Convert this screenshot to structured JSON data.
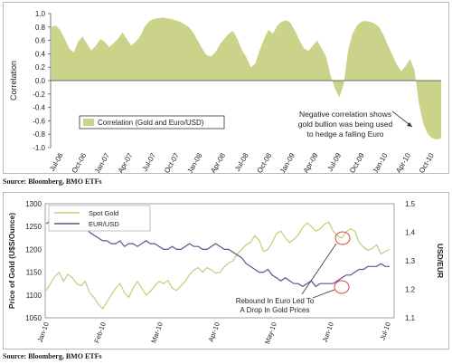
{
  "chart_data": [
    {
      "type": "area",
      "ylabel": "Correlation",
      "ylim": [
        -1.0,
        1.0
      ],
      "yticks": [
        "1.0",
        "0.8",
        "0.6",
        "0.4",
        "0.2",
        "0.0",
        "-0.2",
        "-0.4",
        "-0.6",
        "-0.8",
        "-1.0"
      ],
      "xticks": [
        "Jul-06",
        "Oct-06",
        "Jan-07",
        "Apr-07",
        "Jul-07",
        "Oct-07",
        "Jan-08",
        "Apr-08",
        "Jul-08",
        "Oct-08",
        "Jan-09",
        "Apr-09",
        "Jul-09",
        "Oct-09",
        "Jan-10",
        "Apr-10",
        "Oct-10"
      ],
      "legend": "Correlation (Gold and Euro/USD)",
      "legend_position": "bottom-left",
      "annotation": [
        "Negative correlation shows",
        "gold bullion was being used",
        "to hedge a falling Euro"
      ],
      "color": "#cbd28a",
      "series": [
        {
          "values": [
            0.8,
            0.82,
            0.75,
            0.62,
            0.48,
            0.42,
            0.58,
            0.66,
            0.55,
            0.45,
            0.52,
            0.62,
            0.58,
            0.5,
            0.56,
            0.62,
            0.72,
            0.62,
            0.52,
            0.58,
            0.66,
            0.8,
            0.88,
            0.92,
            0.93,
            0.94,
            0.93,
            0.92,
            0.9,
            0.88,
            0.84,
            0.8,
            0.72,
            0.6,
            0.48,
            0.38,
            0.36,
            0.42,
            0.54,
            0.62,
            0.7,
            0.74,
            0.62,
            0.46,
            0.35,
            0.2,
            0.25,
            0.45,
            0.62,
            0.76,
            0.7,
            0.82,
            0.88,
            0.9,
            0.86,
            0.74,
            0.6,
            0.48,
            0.44,
            0.52,
            0.6,
            0.48,
            0.36,
            0.08,
            -0.12,
            -0.25,
            -0.05,
            0.45,
            0.7,
            0.82,
            0.88,
            0.89,
            0.88,
            0.85,
            0.8,
            0.68,
            0.52,
            0.38,
            0.24,
            0.14,
            0.22,
            0.32,
            0.15,
            -0.35,
            -0.65,
            -0.8,
            -0.86,
            -0.88,
            -0.86
          ]
        }
      ]
    },
    {
      "type": "line",
      "ylabel": "Price of Gold (U$S/Ounce)",
      "y2label": "USD/EUR",
      "ylim": [
        1050,
        1300
      ],
      "y2lim": [
        1.1,
        1.5
      ],
      "yticks": [
        "1300",
        "1250",
        "1200",
        "1150",
        "1100",
        "1050"
      ],
      "y2ticks": [
        "1.5",
        "1.4",
        "1.3",
        "1.2",
        "1.1"
      ],
      "xticks": [
        "Jan-10",
        "Feb-10",
        "Mar-10",
        "Apr-10",
        "May-10",
        "Jun-10",
        "Jul-10"
      ],
      "legend_position": "top-left",
      "annotation": [
        "Rebound In Euro Led To",
        "A Drop In Gold Prices"
      ],
      "series": [
        {
          "name": "Spot Gold",
          "color": "#bdd07b",
          "axis": "left",
          "values": [
            1110,
            1125,
            1140,
            1150,
            1130,
            1145,
            1138,
            1125,
            1120,
            1130,
            1105,
            1095,
            1080,
            1070,
            1085,
            1100,
            1115,
            1125,
            1105,
            1095,
            1115,
            1130,
            1115,
            1100,
            1108,
            1120,
            1130,
            1125,
            1132,
            1115,
            1110,
            1120,
            1130,
            1145,
            1155,
            1160,
            1150,
            1160,
            1155,
            1148,
            1150,
            1162,
            1170,
            1175,
            1190,
            1200,
            1210,
            1215,
            1230,
            1220,
            1195,
            1200,
            1215,
            1235,
            1240,
            1225,
            1215,
            1222,
            1232,
            1248,
            1258,
            1250,
            1240,
            1245,
            1255,
            1260,
            1240,
            1230,
            1225,
            1238,
            1245,
            1240,
            1215,
            1205,
            1198,
            1202,
            1210,
            1190,
            1195,
            1200
          ]
        },
        {
          "name": "EUR/USD",
          "color": "#6c4c8a",
          "axis": "right",
          "values": [
            1.43,
            1.44,
            1.45,
            1.44,
            1.45,
            1.43,
            1.43,
            1.44,
            1.42,
            1.42,
            1.4,
            1.39,
            1.38,
            1.37,
            1.37,
            1.36,
            1.36,
            1.37,
            1.35,
            1.36,
            1.36,
            1.35,
            1.36,
            1.37,
            1.36,
            1.36,
            1.35,
            1.34,
            1.34,
            1.35,
            1.34,
            1.34,
            1.35,
            1.36,
            1.35,
            1.35,
            1.34,
            1.34,
            1.35,
            1.36,
            1.35,
            1.34,
            1.34,
            1.33,
            1.32,
            1.31,
            1.29,
            1.28,
            1.27,
            1.26,
            1.26,
            1.27,
            1.25,
            1.24,
            1.23,
            1.24,
            1.23,
            1.22,
            1.22,
            1.21,
            1.22,
            1.23,
            1.21,
            1.22,
            1.22,
            1.22,
            1.22,
            1.23,
            1.24,
            1.25,
            1.25,
            1.26,
            1.27,
            1.27,
            1.28,
            1.28,
            1.28,
            1.29,
            1.28,
            1.28
          ]
        }
      ]
    }
  ],
  "sources": [
    "Source: Bloomberg, BMO ETFs",
    "Source: Bloomberg, BMO ETFs"
  ]
}
